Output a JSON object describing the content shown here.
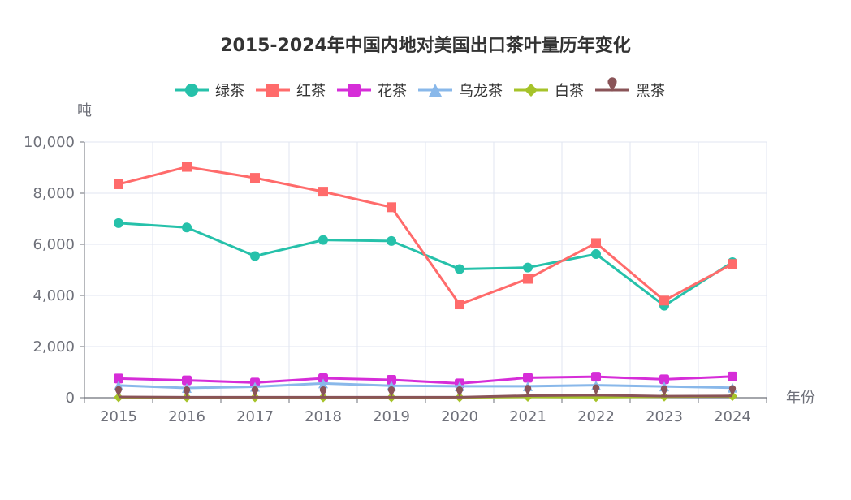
{
  "chart_data": {
    "type": "line",
    "title": "2015-2024年中国内地对美国出口茶叶量历年变化",
    "xlabel": "年份",
    "ylabel": "吨",
    "categories": [
      "2015",
      "2016",
      "2017",
      "2018",
      "2019",
      "2020",
      "2021",
      "2022",
      "2023",
      "2024"
    ],
    "ylim": [
      0,
      10000
    ],
    "yticks": [
      "0",
      "2,000",
      "4,000",
      "6,000",
      "8,000",
      "10,000"
    ],
    "ytick_values": [
      0,
      2000,
      4000,
      6000,
      8000,
      10000
    ],
    "grid": true,
    "legend_position": "top-center",
    "series": [
      {
        "name": "绿茶",
        "color": "#26c1aa",
        "marker": "circle",
        "values": [
          6830,
          6660,
          5540,
          6170,
          6130,
          5030,
          5090,
          5620,
          3600,
          5300
        ]
      },
      {
        "name": "红茶",
        "color": "#ff6b6b",
        "marker": "square",
        "values": [
          8350,
          9030,
          8600,
          8060,
          7450,
          3650,
          4650,
          6050,
          3800,
          5230
        ]
      },
      {
        "name": "花茶",
        "color": "#d62dd8",
        "marker": "roundRect",
        "values": [
          750,
          680,
          590,
          760,
          700,
          560,
          780,
          820,
          720,
          830
        ]
      },
      {
        "name": "乌龙茶",
        "color": "#89b8ea",
        "marker": "triangle",
        "values": [
          480,
          380,
          430,
          560,
          470,
          450,
          450,
          490,
          440,
          390
        ]
      },
      {
        "name": "白茶",
        "color": "#a6c32a",
        "marker": "diamond",
        "values": [
          10,
          10,
          10,
          10,
          10,
          10,
          30,
          20,
          40,
          60
        ]
      },
      {
        "name": "黑茶",
        "color": "#8a5458",
        "marker": "pin",
        "values": [
          30,
          20,
          20,
          20,
          20,
          20,
          80,
          100,
          60,
          70
        ]
      }
    ]
  }
}
